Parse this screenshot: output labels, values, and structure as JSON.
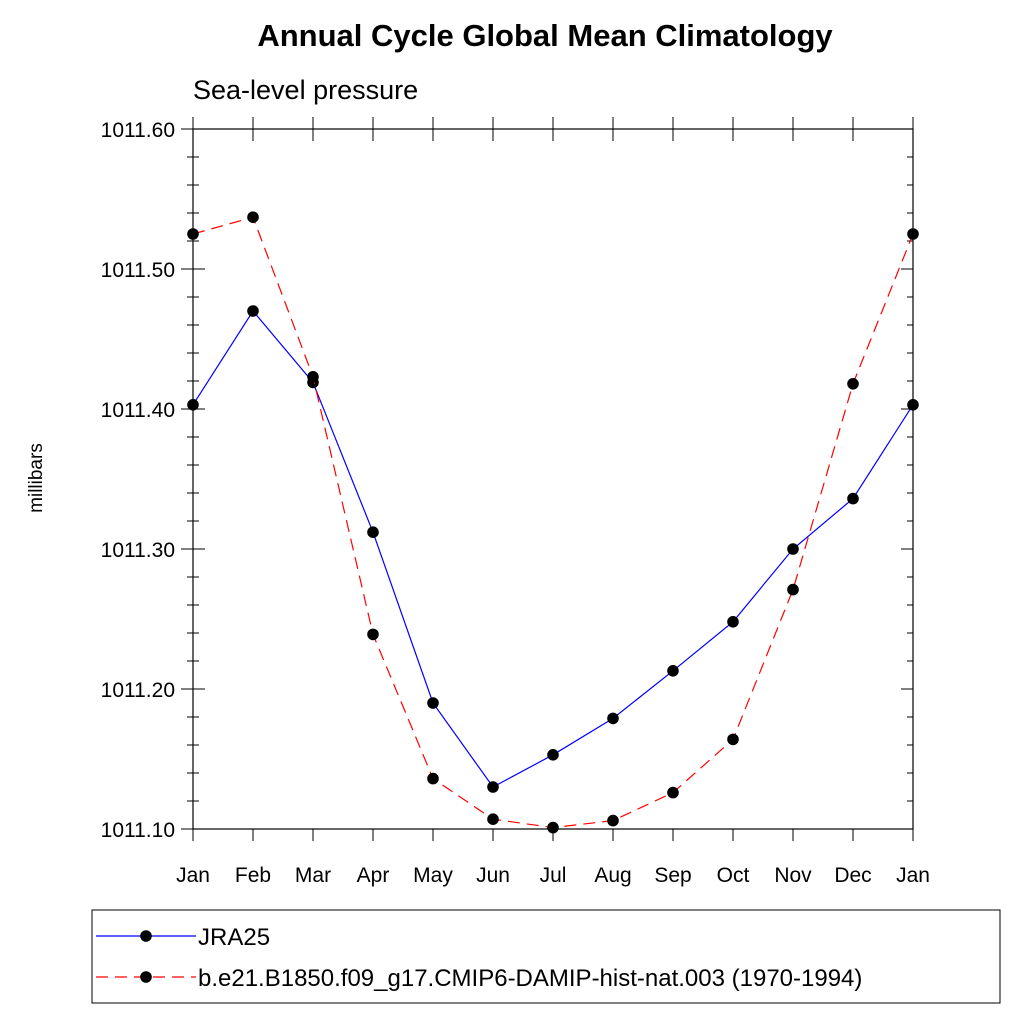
{
  "chart_data": {
    "type": "line",
    "title": "Annual Cycle Global Mean Climatology",
    "subtitle": "Sea-level pressure",
    "ylabel": "millibars",
    "xlabel": "",
    "categories": [
      "Jan",
      "Feb",
      "Mar",
      "Apr",
      "May",
      "Jun",
      "Jul",
      "Aug",
      "Sep",
      "Oct",
      "Nov",
      "Dec",
      "Jan"
    ],
    "ylim": [
      1011.1,
      1011.6
    ],
    "yticks": [
      "1011.60",
      "1011.50",
      "1011.40",
      "1011.30",
      "1011.20",
      "1011.10"
    ],
    "grid": false,
    "legend_position": "bottom",
    "series": [
      {
        "name": "JRA25",
        "color": "#0000ff",
        "style": "solid",
        "values": [
          1011.403,
          1011.47,
          1011.419,
          1011.312,
          1011.19,
          1011.13,
          1011.153,
          1011.179,
          1011.213,
          1011.248,
          1011.3,
          1011.336,
          1011.403
        ]
      },
      {
        "name": "b.e21.B1850.f09_g17.CMIP6-DAMIP-hist-nat.003 (1970-1994)",
        "color": "#ff0000",
        "style": "dashed",
        "values": [
          1011.525,
          1011.537,
          1011.423,
          1011.239,
          1011.136,
          1011.107,
          1011.101,
          1011.106,
          1011.126,
          1011.164,
          1011.271,
          1011.418,
          1011.525
        ]
      }
    ]
  }
}
